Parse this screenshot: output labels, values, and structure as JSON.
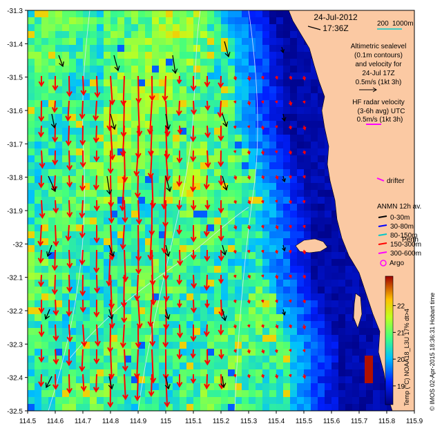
{
  "header": {
    "date": "24-Jul-2012",
    "time": "17:36Z"
  },
  "scale": {
    "label_200": "200",
    "label_1000": "1000m"
  },
  "legend": {
    "altimetry_lines": [
      "Altimetric sealevel",
      "(0.1m contours)",
      "and velocity for",
      "24-Jul 17Z",
      "0.5m/s (1kt 3h)"
    ],
    "hf_lines": [
      "HF radar velocity",
      "(3-6h avg) UTC",
      "0.5m/s (1kt 3h)"
    ],
    "drifter": "drifter",
    "anmn_title": "ANMN 12h av.",
    "anmn_items": [
      {
        "label": "0-30m",
        "color": "#000000"
      },
      {
        "label": "30-80m",
        "color": "#0000ff"
      },
      {
        "label": "80-150m",
        "color": "#00c8c8"
      },
      {
        "label": "150-300m",
        "color": "#ff0000"
      },
      {
        "label": "300-600m",
        "color": "#ff00ff"
      }
    ],
    "perth": "Perth",
    "argo": "Argo"
  },
  "axes": {
    "x_ticks": [
      "114.5",
      "114.6",
      "114.7",
      "114.8",
      "114.9",
      "115",
      "115.1",
      "115.2",
      "115.3",
      "115.4",
      "115.5",
      "115.6",
      "115.7",
      "115.8",
      "115.9"
    ],
    "y_ticks": [
      "-31.3",
      "-31.4",
      "-31.5",
      "-31.6",
      "-31.7",
      "-31.8",
      "-31.9",
      "-32",
      "-32.1",
      "-32.2",
      "-32.3",
      "-32.4",
      "-32.5"
    ],
    "lon_range": [
      114.5,
      115.9
    ],
    "lat_range": [
      -32.5,
      -31.3
    ]
  },
  "colorbar": {
    "title": "Temp (°C) NOAA18_L3U 17% dt>4",
    "ticks": [
      "22",
      "21",
      "20",
      "19"
    ],
    "range": [
      18.3,
      23.1
    ]
  },
  "credit": "© IMOS 02-Apr-2015 18:36:31 Hobart time",
  "colors": {
    "land": "#fbc9a3",
    "hf_arrow": "#ff0000",
    "altimetry_arrow": "#000000",
    "drifter": "#ff00ff"
  }
}
